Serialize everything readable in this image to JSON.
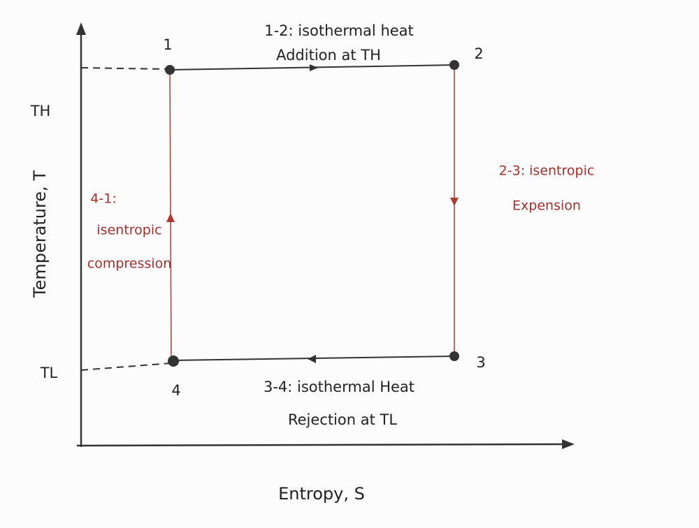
{
  "axes": {
    "y_label": "Temperature, T",
    "x_label": "Entropy, S",
    "t_high": "TH",
    "t_low": "TL"
  },
  "nodes": [
    {
      "label": "1"
    },
    {
      "label": "2"
    },
    {
      "label": "3"
    },
    {
      "label": "4"
    }
  ],
  "processes": [
    {
      "lines": [
        "1-2: isothermal heat",
        "Addition at TH"
      ]
    },
    {
      "lines": [
        "2-3: isentropic",
        "Expension"
      ]
    },
    {
      "lines": [
        "3-4: isothermal Heat",
        "Rejection at TL"
      ]
    },
    {
      "lines": [
        "4-1:",
        "isentropic",
        "compression"
      ]
    }
  ]
}
